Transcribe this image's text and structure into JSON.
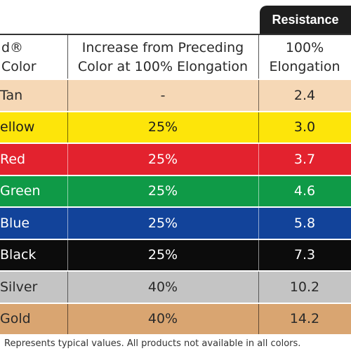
{
  "tab": {
    "label": "Resistance"
  },
  "header": {
    "col1_line1": "d®",
    "col1_line2": "Color",
    "col2_line1": "Increase from Preceding",
    "col2_line2": "Color at 100% Elongation",
    "col3_line1": "100%",
    "col3_line2": "Elongation"
  },
  "rows": [
    {
      "color": "Tan",
      "increase": "-",
      "resistance": "2.4",
      "bg": "#f6d8b6",
      "fg": "#2a2a2a"
    },
    {
      "color": "ellow",
      "increase": "25%",
      "resistance": "3.0",
      "bg": "#fde50a",
      "fg": "#1c1c1c"
    },
    {
      "color": "Red",
      "increase": "25%",
      "resistance": "3.7",
      "bg": "#e3222e",
      "fg": "#ffffff"
    },
    {
      "color": "Green",
      "increase": "25%",
      "resistance": "4.6",
      "bg": "#0f9a47",
      "fg": "#ffffff"
    },
    {
      "color": "Blue",
      "increase": "25%",
      "resistance": "5.8",
      "bg": "#12439a",
      "fg": "#ffffff"
    },
    {
      "color": "Black",
      "increase": "25%",
      "resistance": "7.3",
      "bg": "#0c0c0c",
      "fg": "#ffffff"
    },
    {
      "color": "Silver",
      "increase": "40%",
      "resistance": "10.2",
      "bg": "#c4c4c4",
      "fg": "#2a2a2a"
    },
    {
      "color": "Gold",
      "increase": "40%",
      "resistance": "14.2",
      "bg": "#d9a571",
      "fg": "#2a2a2a"
    }
  ],
  "footer": {
    "note": "Represents typical values. All products not available in all colors."
  }
}
